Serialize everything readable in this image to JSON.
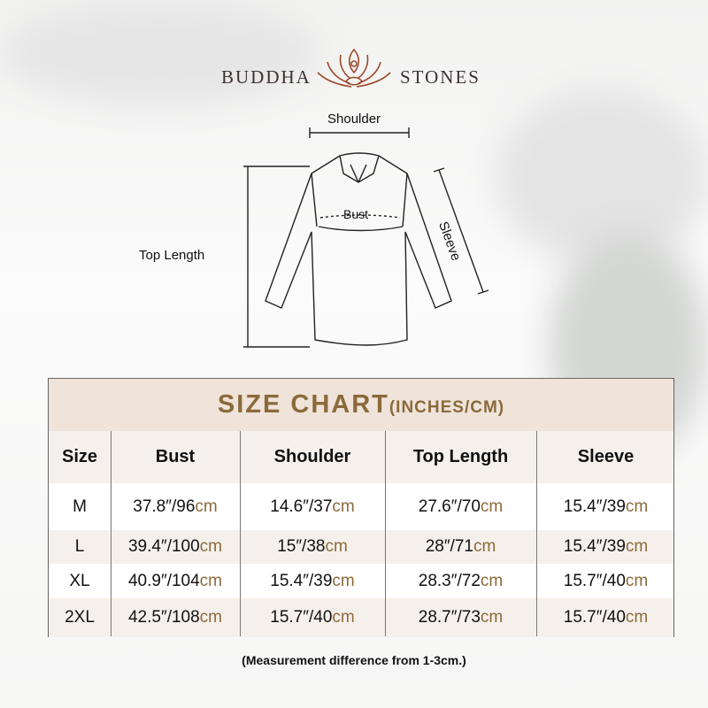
{
  "brand": {
    "left": "BUDDHA",
    "right": "STONES",
    "logo_icon": "lotus-meditation-icon",
    "color": "#9a4a2a"
  },
  "diagram": {
    "shoulder": "Shoulder",
    "bust": "Bust",
    "top_length": "Top Length",
    "sleeve": "Sleeve"
  },
  "table": {
    "title": "SIZE CHART",
    "title_units": "(INCHES/CM)",
    "headers": [
      "Size",
      "Bust",
      "Shoulder",
      "Top Length",
      "Sleeve"
    ],
    "unit_suffix": "cm",
    "rows": [
      {
        "size": "M",
        "cells": [
          "37.8″/96",
          "14.6″/37",
          "27.6″/70",
          "15.4″/39"
        ]
      },
      {
        "size": "L",
        "cells": [
          "39.4″/100",
          "15″/38",
          "28″/71",
          "15.4″/39"
        ]
      },
      {
        "size": "XL",
        "cells": [
          "40.9″/104",
          "15.4″/39",
          "28.3″/72",
          "15.7″/40"
        ]
      },
      {
        "size": "2XL",
        "cells": [
          "42.5″/108",
          "15.7″/40",
          "28.7″/73",
          "15.7″/40"
        ]
      }
    ],
    "colors": {
      "accent": "#8a6a3a",
      "header_bg": "#efe3da",
      "row_tint": "#f6f0ec"
    }
  },
  "note": "(Measurement difference from 1-3cm.)"
}
